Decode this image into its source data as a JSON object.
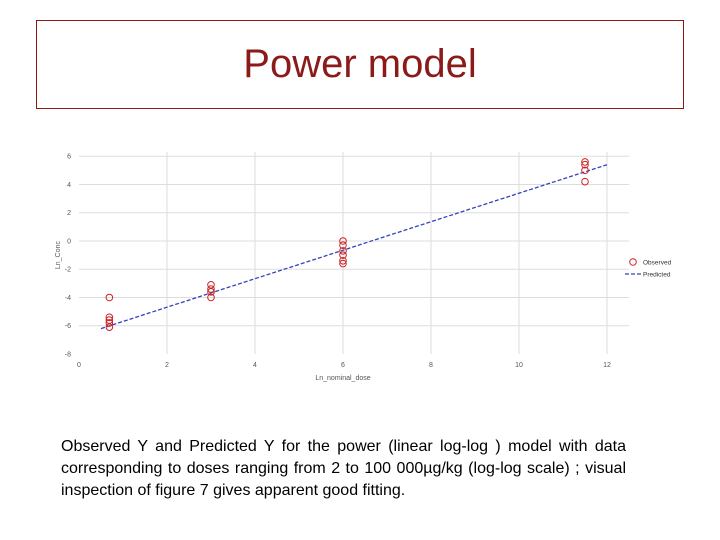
{
  "slide": {
    "title": "Power model",
    "caption": "Observed Y and Predicted Y for the power (linear log-log ) model with data corresponding to doses ranging from 2 to 100 000µg/kg (log-log scale) ; visual inspection of figure 7 gives apparent good fitting."
  },
  "chart_data": {
    "type": "scatter",
    "title": "",
    "xlabel": "Ln_nominal_dose",
    "ylabel": "Ln_Conc",
    "xlim": [
      0,
      12.5
    ],
    "ylim": [
      -8,
      6.3
    ],
    "xticks": [
      0,
      2,
      4,
      6,
      8,
      10,
      12
    ],
    "yticks": [
      -8,
      -6,
      -4,
      -2,
      0,
      2,
      4,
      6
    ],
    "grid": true,
    "legend_position": "right",
    "colors": {
      "observed": "#cc2222",
      "predicted": "#3344bb",
      "grid": "#dddddd",
      "axis_text": "#555555"
    },
    "series": [
      {
        "name": "Observed",
        "marker": "circle-open",
        "points": [
          [
            0.69,
            -4.0
          ],
          [
            0.69,
            -5.4
          ],
          [
            0.69,
            -5.6
          ],
          [
            0.69,
            -5.8
          ],
          [
            0.69,
            -6.1
          ],
          [
            3.0,
            -3.1
          ],
          [
            3.0,
            -3.4
          ],
          [
            3.0,
            -3.6
          ],
          [
            3.0,
            -4.0
          ],
          [
            6.0,
            0.0
          ],
          [
            6.0,
            -0.3
          ],
          [
            6.0,
            -0.7
          ],
          [
            6.0,
            -1.0
          ],
          [
            6.0,
            -1.4
          ],
          [
            6.0,
            -1.6
          ],
          [
            11.5,
            5.6
          ],
          [
            11.5,
            5.4
          ],
          [
            11.5,
            5.0
          ],
          [
            11.5,
            4.2
          ]
        ]
      },
      {
        "name": "Predicted",
        "line": "dashed",
        "points": [
          [
            0.5,
            -6.2
          ],
          [
            12.0,
            5.4
          ]
        ]
      }
    ]
  }
}
